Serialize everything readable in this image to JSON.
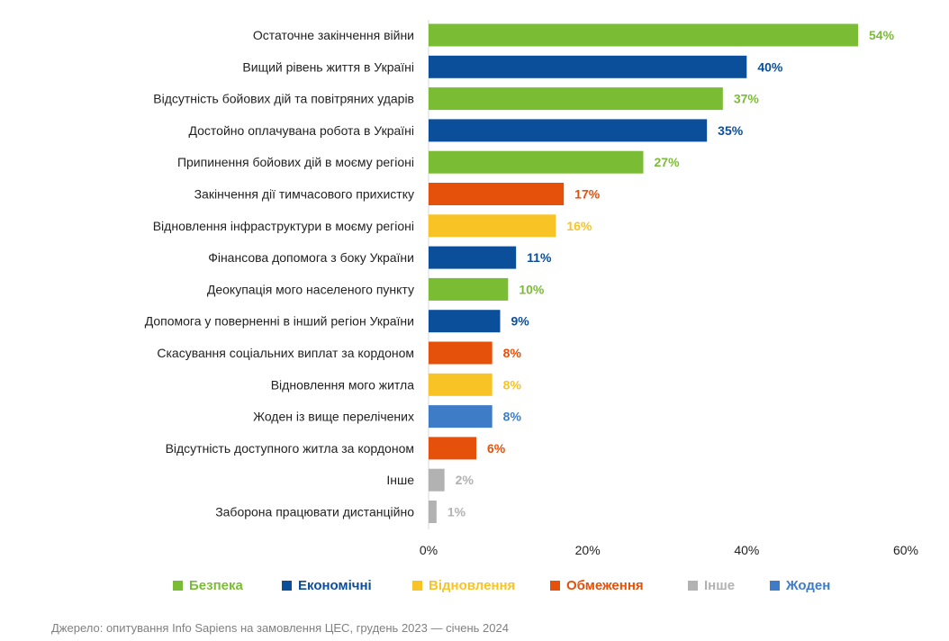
{
  "chart_data": {
    "type": "bar",
    "orientation": "horizontal",
    "categories": [
      "Остаточне закінчення війни",
      "Вищий рівень життя в Україні",
      "Відсутність бойових дій та повітряних ударів",
      "Достойно оплачувана робота в Україні",
      "Припинення бойових дій в моєму регіоні",
      "Закінчення дії тимчасового прихистку",
      "Відновлення інфраструктури в моєму регіоні",
      "Фінансова допомога з боку України",
      "Деокупація мого населеного пункту",
      "Допомога у поверненні в інший регіон України",
      "Скасування соціальних виплат за кордоном",
      "Відновлення мого житла",
      "Жоден із вище перелічених",
      "Відсутність доступного житла за кордоном",
      "Інше",
      "Заборона працювати дистанційно"
    ],
    "values": [
      54,
      40,
      37,
      35,
      27,
      17,
      16,
      11,
      10,
      9,
      8,
      8,
      8,
      6,
      2,
      1
    ],
    "value_labels": [
      "54%",
      "40%",
      "37%",
      "35%",
      "27%",
      "17%",
      "16%",
      "11%",
      "10%",
      "9%",
      "8%",
      "8%",
      "8%",
      "6%",
      "2%",
      "1%"
    ],
    "groups": [
      "safety",
      "economic",
      "safety",
      "economic",
      "safety",
      "restriction",
      "recovery",
      "economic",
      "safety",
      "economic",
      "restriction",
      "recovery",
      "none",
      "restriction",
      "other",
      "other"
    ],
    "xlim": [
      0,
      60
    ],
    "xticks": [
      0,
      20,
      40,
      60
    ],
    "xtick_labels": [
      "0%",
      "20%",
      "40%",
      "60%"
    ],
    "legend": [
      {
        "key": "safety",
        "label": "Безпека",
        "color": "#7bbc35"
      },
      {
        "key": "economic",
        "label": "Економічні",
        "color": "#0b4f9b"
      },
      {
        "key": "recovery",
        "label": "Відновлення",
        "color": "#f7c325"
      },
      {
        "key": "restriction",
        "label": "Обмеження",
        "color": "#e5500a"
      },
      {
        "key": "other",
        "label": "Інше",
        "color": "#b2b2b2"
      },
      {
        "key": "none",
        "label": "Жоден",
        "color": "#3f7cc7"
      }
    ],
    "legend_placement": "bottom",
    "grid": false
  },
  "source_text": "Джерело: опитування Info Sapiens на замовлення ЦЕС, грудень 2023 — січень 2024"
}
